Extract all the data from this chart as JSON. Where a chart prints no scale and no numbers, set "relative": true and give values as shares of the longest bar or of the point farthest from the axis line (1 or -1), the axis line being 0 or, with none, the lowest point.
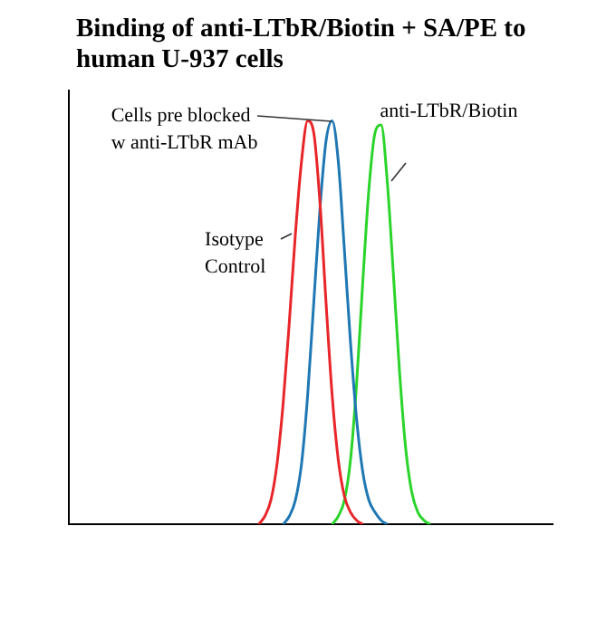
{
  "chart_data": {
    "type": "line",
    "title": "Binding of anti-LTbR/Biotin + SA/PE to human U-937 cells",
    "relative": true,
    "marker": "none",
    "grid": false,
    "categories": [
      null,
      null,
      null,
      null,
      null,
      null,
      null,
      null,
      null,
      null,
      null,
      null,
      null,
      null,
      null,
      null,
      null,
      null,
      null,
      null,
      null,
      null,
      null,
      null,
      null,
      null,
      null,
      null,
      null,
      null,
      null,
      null,
      null,
      null,
      null,
      null,
      null,
      null,
      null,
      null,
      null,
      null,
      null,
      null,
      null,
      null,
      null,
      null,
      null,
      null,
      null,
      null,
      null,
      null,
      null,
      null,
      null,
      null,
      null,
      null,
      null,
      null,
      null,
      null,
      null,
      null,
      null,
      null,
      null,
      null,
      null,
      null,
      null,
      null,
      null,
      null,
      null,
      null,
      null,
      null
    ],
    "series": [
      {
        "name": "Isotype Control",
        "color": "#e8262a",
        "values": [
          null,
          null,
          null,
          null,
          null,
          null,
          null,
          null,
          null,
          null,
          null,
          null,
          null,
          null,
          null,
          null,
          null,
          null,
          null,
          null,
          null,
          null,
          null,
          null,
          null,
          null,
          null,
          null,
          null,
          null,
          null,
          0,
          0.02,
          0.06,
          0.15,
          0.3,
          0.5,
          0.72,
          0.9,
          1,
          0.97,
          0.8,
          0.55,
          0.32,
          0.16,
          0.07,
          0.03,
          0.01,
          0,
          null,
          null,
          null,
          null,
          null,
          null,
          null,
          null,
          null,
          null,
          null,
          null,
          null,
          null,
          null,
          null,
          null,
          null,
          null,
          null,
          null,
          null,
          null,
          null,
          null,
          null,
          null,
          null,
          null,
          null,
          null
        ]
      },
      {
        "name": "Cells pre blocked w anti-LTbR mAb",
        "color": "#1f78b4",
        "values": [
          null,
          null,
          null,
          null,
          null,
          null,
          null,
          null,
          null,
          null,
          null,
          null,
          null,
          null,
          null,
          null,
          null,
          null,
          null,
          null,
          null,
          null,
          null,
          null,
          null,
          null,
          null,
          null,
          null,
          null,
          null,
          null,
          null,
          null,
          null,
          0,
          0.02,
          0.06,
          0.15,
          0.32,
          0.55,
          0.78,
          0.95,
          1,
          0.9,
          0.68,
          0.45,
          0.26,
          0.13,
          0.06,
          0.03,
          0.01,
          0,
          null,
          null,
          null,
          null,
          null,
          null,
          null,
          null,
          null,
          null,
          null,
          null,
          null,
          null,
          null,
          null,
          null,
          null,
          null,
          null,
          null,
          null,
          null,
          null,
          null,
          null,
          null
        ]
      },
      {
        "name": "anti-LTbR/Biotin",
        "color": "#2bd42b",
        "values": [
          null,
          null,
          null,
          null,
          null,
          null,
          null,
          null,
          null,
          null,
          null,
          null,
          null,
          null,
          null,
          null,
          null,
          null,
          null,
          null,
          null,
          null,
          null,
          null,
          null,
          null,
          null,
          null,
          null,
          null,
          null,
          null,
          null,
          null,
          null,
          null,
          null,
          null,
          null,
          null,
          null,
          null,
          null,
          0,
          0.02,
          0.06,
          0.16,
          0.35,
          0.6,
          0.83,
          0.97,
          0.99,
          0.85,
          0.62,
          0.38,
          0.19,
          0.08,
          0.03,
          0.01,
          0,
          null,
          null,
          null,
          null,
          null,
          null,
          null,
          null,
          null,
          null,
          null,
          null,
          null,
          null,
          null,
          null,
          null,
          null,
          null,
          null
        ]
      }
    ]
  }
}
